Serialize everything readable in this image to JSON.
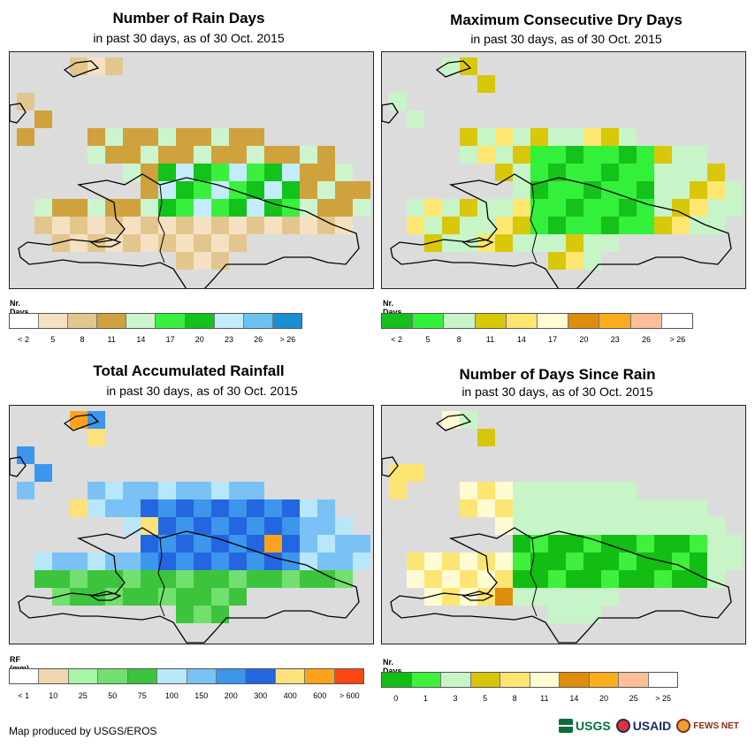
{
  "panels": [
    {
      "id": "rain-days",
      "title": "Number of Rain Days",
      "subtitle": "in past 30 days, as of 30 Oct. 2015",
      "legend_title": "Nr. Days",
      "legend_colors": [
        "#ffffff",
        "#f5e1c2",
        "#e3c68e",
        "#cfa23d",
        "#cdf5cd",
        "#39f03f",
        "#13c21a",
        "#c4ecfa",
        "#6cc3f2",
        "#1a8fd5"
      ],
      "legend_labels": [
        "< 2",
        "5",
        "8",
        "11",
        "14",
        "17",
        "20",
        "23",
        "26",
        "> 26"
      ]
    },
    {
      "id": "max-dry-days",
      "title": "Maximum Consecutive Dry Days",
      "subtitle": "in past 30 days, as of 30 Oct. 2015",
      "legend_title": "Nr. Days",
      "legend_colors": [
        "#14c21b",
        "#33f03b",
        "#c7f5c8",
        "#d9c70a",
        "#fde771",
        "#fffbd3",
        "#de8e0c",
        "#fdab1e",
        "#fdbf97",
        "#ffffff"
      ],
      "legend_labels": [
        "< 2",
        "5",
        "8",
        "11",
        "14",
        "17",
        "20",
        "23",
        "26",
        "> 26"
      ]
    },
    {
      "id": "total-rainfall",
      "title": "Total Accumulated Rainfall",
      "subtitle": "in past 30 days, as of 30 Oct. 2015",
      "legend_title": "RF (mm)",
      "legend_colors": [
        "#ffffff",
        "#f0d7b0",
        "#a7f5a6",
        "#71e06e",
        "#3dc43d",
        "#b7e7f9",
        "#7ac2f5",
        "#3c96ec",
        "#2366df",
        "#fde17a",
        "#fda31b",
        "#fd4612"
      ],
      "legend_labels": [
        "< 1",
        "10",
        "25",
        "50",
        "75",
        "100",
        "150",
        "200",
        "300",
        "400",
        "600",
        "> 600"
      ]
    },
    {
      "id": "days-since-rain",
      "title": "Number of Days Since Rain",
      "subtitle": "in past 30 days, as of 30 Oct. 2015",
      "legend_title": "Nr. Days",
      "legend_colors": [
        "#13bd14",
        "#3ff03c",
        "#c8f5c7",
        "#d8c509",
        "#fde573",
        "#fffbd2",
        "#de8d0c",
        "#fdae1e",
        "#fdbf97",
        "#ffffff"
      ],
      "legend_labels": [
        "0",
        "1",
        "3",
        "5",
        "8",
        "11",
        "14",
        "20",
        "25",
        "> 25"
      ]
    }
  ],
  "credit": "Map produced by USGS/EROS",
  "logos": {
    "usgs": "USGS",
    "usaid": "USAID",
    "fews": "FEWS NET"
  },
  "colors": {
    "land_bg": "#dcdcdc",
    "coast": "#000000"
  }
}
